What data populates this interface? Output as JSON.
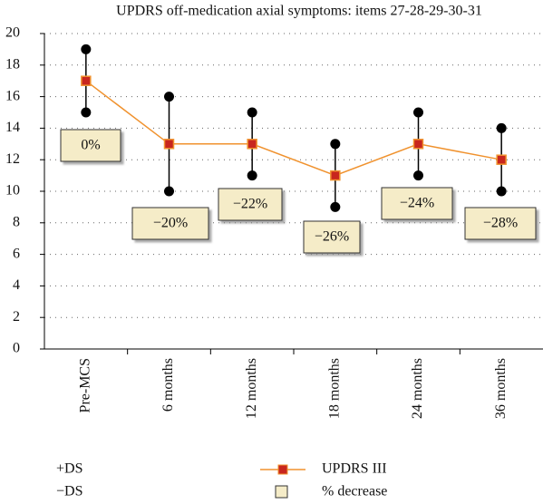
{
  "chart_data": {
    "type": "errorbar-line",
    "title": "UPDRS off-medication axial symptoms: items 27-28-29-30-31",
    "categories": [
      "Pre-MCS",
      "6 months",
      "12 months",
      "18 months",
      "24 months",
      "36 months"
    ],
    "series": [
      {
        "name": "UPDRS III",
        "color": "#f0922e",
        "marker_color": "#c8261e",
        "values": [
          17,
          13,
          13,
          11,
          13,
          12
        ]
      },
      {
        "name": "+DS",
        "color": "#000000",
        "values": [
          19,
          16,
          15,
          13,
          15,
          14
        ]
      },
      {
        "name": "−DS",
        "color": "#000000",
        "values": [
          15,
          10,
          11,
          9,
          11,
          10
        ]
      },
      {
        "name": "% decrease",
        "color": "#f5ecc8",
        "values": [
          0,
          -20,
          -22,
          -26,
          -24,
          -28
        ],
        "value_labels": [
          "0%",
          "−20%",
          "−22%",
          "−26%",
          "−24%",
          "−28%"
        ]
      }
    ],
    "ylim": [
      0,
      20
    ],
    "yticks": [
      0,
      2,
      4,
      6,
      8,
      10,
      12,
      14,
      16,
      18,
      20
    ],
    "grid": true
  }
}
